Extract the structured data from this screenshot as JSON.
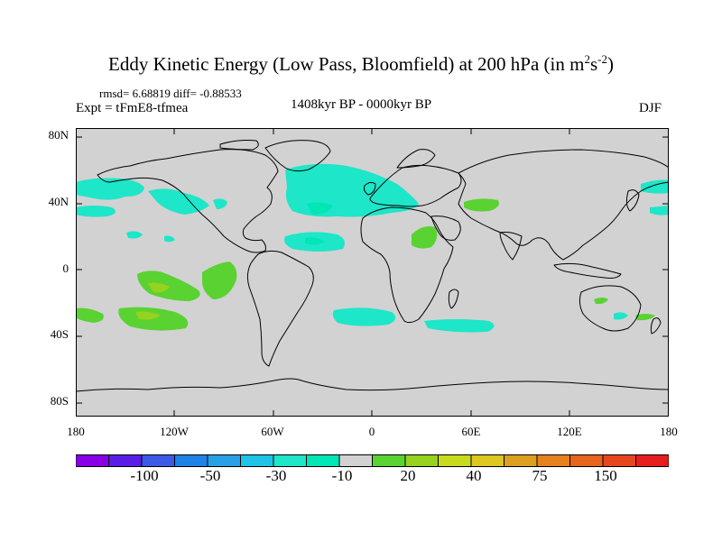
{
  "title": {
    "main": "Eddy Kinetic Energy (Low Pass, Bloomfield) at 200 hPa (in m",
    "sup1": "2",
    "mid": "s",
    "sup2": "-2",
    "end": ")"
  },
  "stats": "rmsd= 6.68819 diff= -0.88533",
  "expt": "Expt = tFmE8-tfmea",
  "period": "1408kyr BP - 0000kyr BP",
  "season": "DJF",
  "axes": {
    "lat_labels": [
      "80N",
      "40N",
      "0",
      "40S",
      "80S"
    ],
    "lon_labels": [
      "180",
      "120W",
      "60W",
      "0",
      "60E",
      "120E",
      "180"
    ]
  },
  "colorbar": {
    "colors": [
      "#8a00e6",
      "#5a1ee6",
      "#3c5ae6",
      "#1e82e6",
      "#28a0e6",
      "#1ec3e6",
      "#1ee6c8",
      "#00e6b4",
      "#d2d2d2",
      "#5ad232",
      "#96d21e",
      "#c8dc1e",
      "#dcc81e",
      "#dca01e",
      "#e6821e",
      "#e6641e",
      "#e6461e",
      "#e61e1e"
    ],
    "labels": [
      "-100",
      "-50",
      "-30",
      "-10",
      "20",
      "40",
      "75",
      "150"
    ]
  },
  "colors": {
    "land_bg": "#d2d2d2",
    "cyan": "#1ee6c8",
    "teal": "#00e6b4",
    "green": "#5ad232",
    "yellow_green": "#96d21e"
  }
}
